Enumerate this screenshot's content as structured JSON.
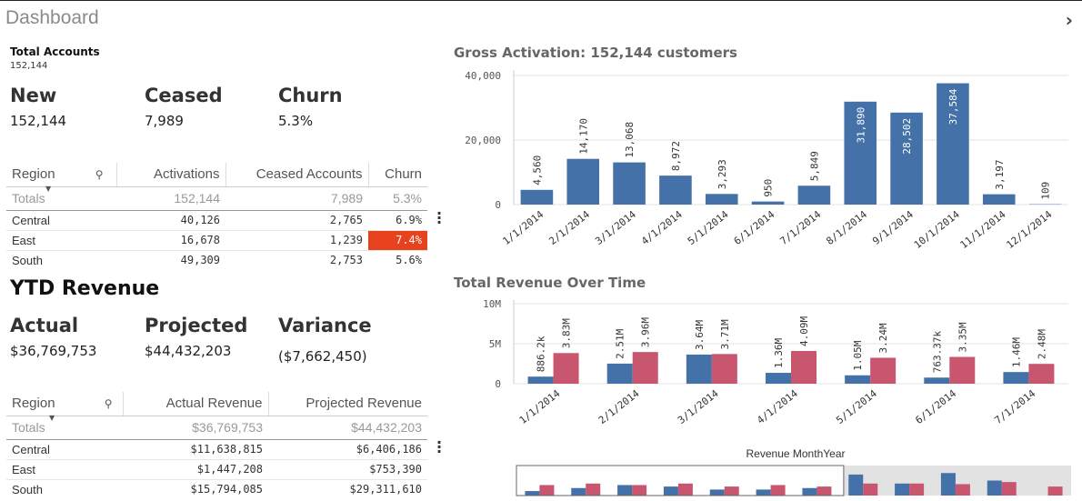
{
  "title": "Dashboard",
  "total_accounts": {
    "label": "Total Accounts",
    "value": "152,144"
  },
  "kpis": [
    {
      "label": "New",
      "value": "152,144"
    },
    {
      "label": "Ceased",
      "value": "7,989"
    },
    {
      "label": "Churn",
      "value": "5.3%"
    }
  ],
  "table1": {
    "headers": [
      "Region",
      "Activations",
      "Ceased Accounts",
      "Churn"
    ],
    "totals": [
      "Totals",
      "152,144",
      "7,989",
      "5.3%"
    ],
    "rows": [
      [
        "Central",
        "40,126",
        "2,765",
        "6.9%"
      ],
      [
        "East",
        "16,678",
        "1,239",
        "7.4%"
      ],
      [
        "South",
        "49,309",
        "2,753",
        "5.6%"
      ]
    ],
    "highlight_color": "#e8411e"
  },
  "ytd": {
    "title": "YTD Revenue",
    "kpis": [
      {
        "label": "Actual",
        "value": "$36,769,753"
      },
      {
        "label": "Projected",
        "value": "$44,432,203"
      },
      {
        "label": "Variance",
        "value": "($7,662,450)"
      }
    ]
  },
  "table2": {
    "headers": [
      "Region",
      "Actual Revenue",
      "Projected Revenue"
    ],
    "totals": [
      "Totals",
      "$36,769,753",
      "$44,432,203"
    ],
    "rows": [
      [
        "Central",
        "$11,638,815",
        "$6,406,186"
      ],
      [
        "East",
        "$1,447,208",
        "$753,390"
      ],
      [
        "South",
        "$15,794,085",
        "$29,311,610"
      ]
    ]
  },
  "chart_data": [
    {
      "type": "bar",
      "title": "Gross Activation: 152,144 customers",
      "categories": [
        "1/1/2014",
        "2/1/2014",
        "3/1/2014",
        "4/1/2014",
        "5/1/2014",
        "6/1/2014",
        "7/1/2014",
        "8/1/2014",
        "9/1/2014",
        "10/1/2014",
        "11/1/2014",
        "12/1/2014"
      ],
      "values": [
        4560,
        14170,
        13068,
        8972,
        3293,
        950,
        5849,
        31890,
        28502,
        37584,
        3197,
        109
      ],
      "labels": [
        "4,560",
        "14,170",
        "13,068",
        "8,972",
        "3,293",
        "950",
        "5,849",
        "31,890",
        "28,502",
        "37,584",
        "3,197",
        "109"
      ],
      "yticks": [
        "0",
        "20,000",
        "40,000"
      ],
      "ylim": [
        0,
        40000
      ],
      "color": "#4472a8",
      "grid": true
    },
    {
      "type": "bar",
      "title": "Total Revenue Over Time",
      "categories": [
        "1/1/2014",
        "2/1/2014",
        "3/1/2014",
        "4/1/2014",
        "5/1/2014",
        "6/1/2014",
        "7/1/2014"
      ],
      "series": [
        {
          "values": [
            886200,
            2510000,
            3640000,
            1360000,
            1050000,
            763370,
            1460000
          ],
          "labels": [
            "886.2k",
            "2.51M",
            "3.64M",
            "1.36M",
            "1.05M",
            "763.37k",
            "1.46M"
          ],
          "color": "#4472a8"
        },
        {
          "values": [
            3830000,
            3960000,
            3710000,
            4090000,
            3240000,
            3350000,
            2480000
          ],
          "labels": [
            "3.83M",
            "3.96M",
            "3.71M",
            "4.09M",
            "3.24M",
            "3.35M",
            "2.48M"
          ],
          "color": "#c9566f"
        }
      ],
      "yticks": [
        "0",
        "5M",
        "10M"
      ],
      "ylim": [
        0,
        10000000
      ],
      "xlabel": "Revenue MonthYear",
      "grid": true
    }
  ],
  "minimap": {
    "blue": [
      0.15,
      0.25,
      0.35,
      0.3,
      0.2,
      0.2,
      0.25,
      0.7,
      0.4,
      0.75,
      0.5,
      0.0
    ],
    "red": [
      0.35,
      0.4,
      0.35,
      0.4,
      0.3,
      0.35,
      0.3,
      0.4,
      0.4,
      0.38,
      0.45,
      0.3
    ],
    "window_fraction": 0.59
  }
}
